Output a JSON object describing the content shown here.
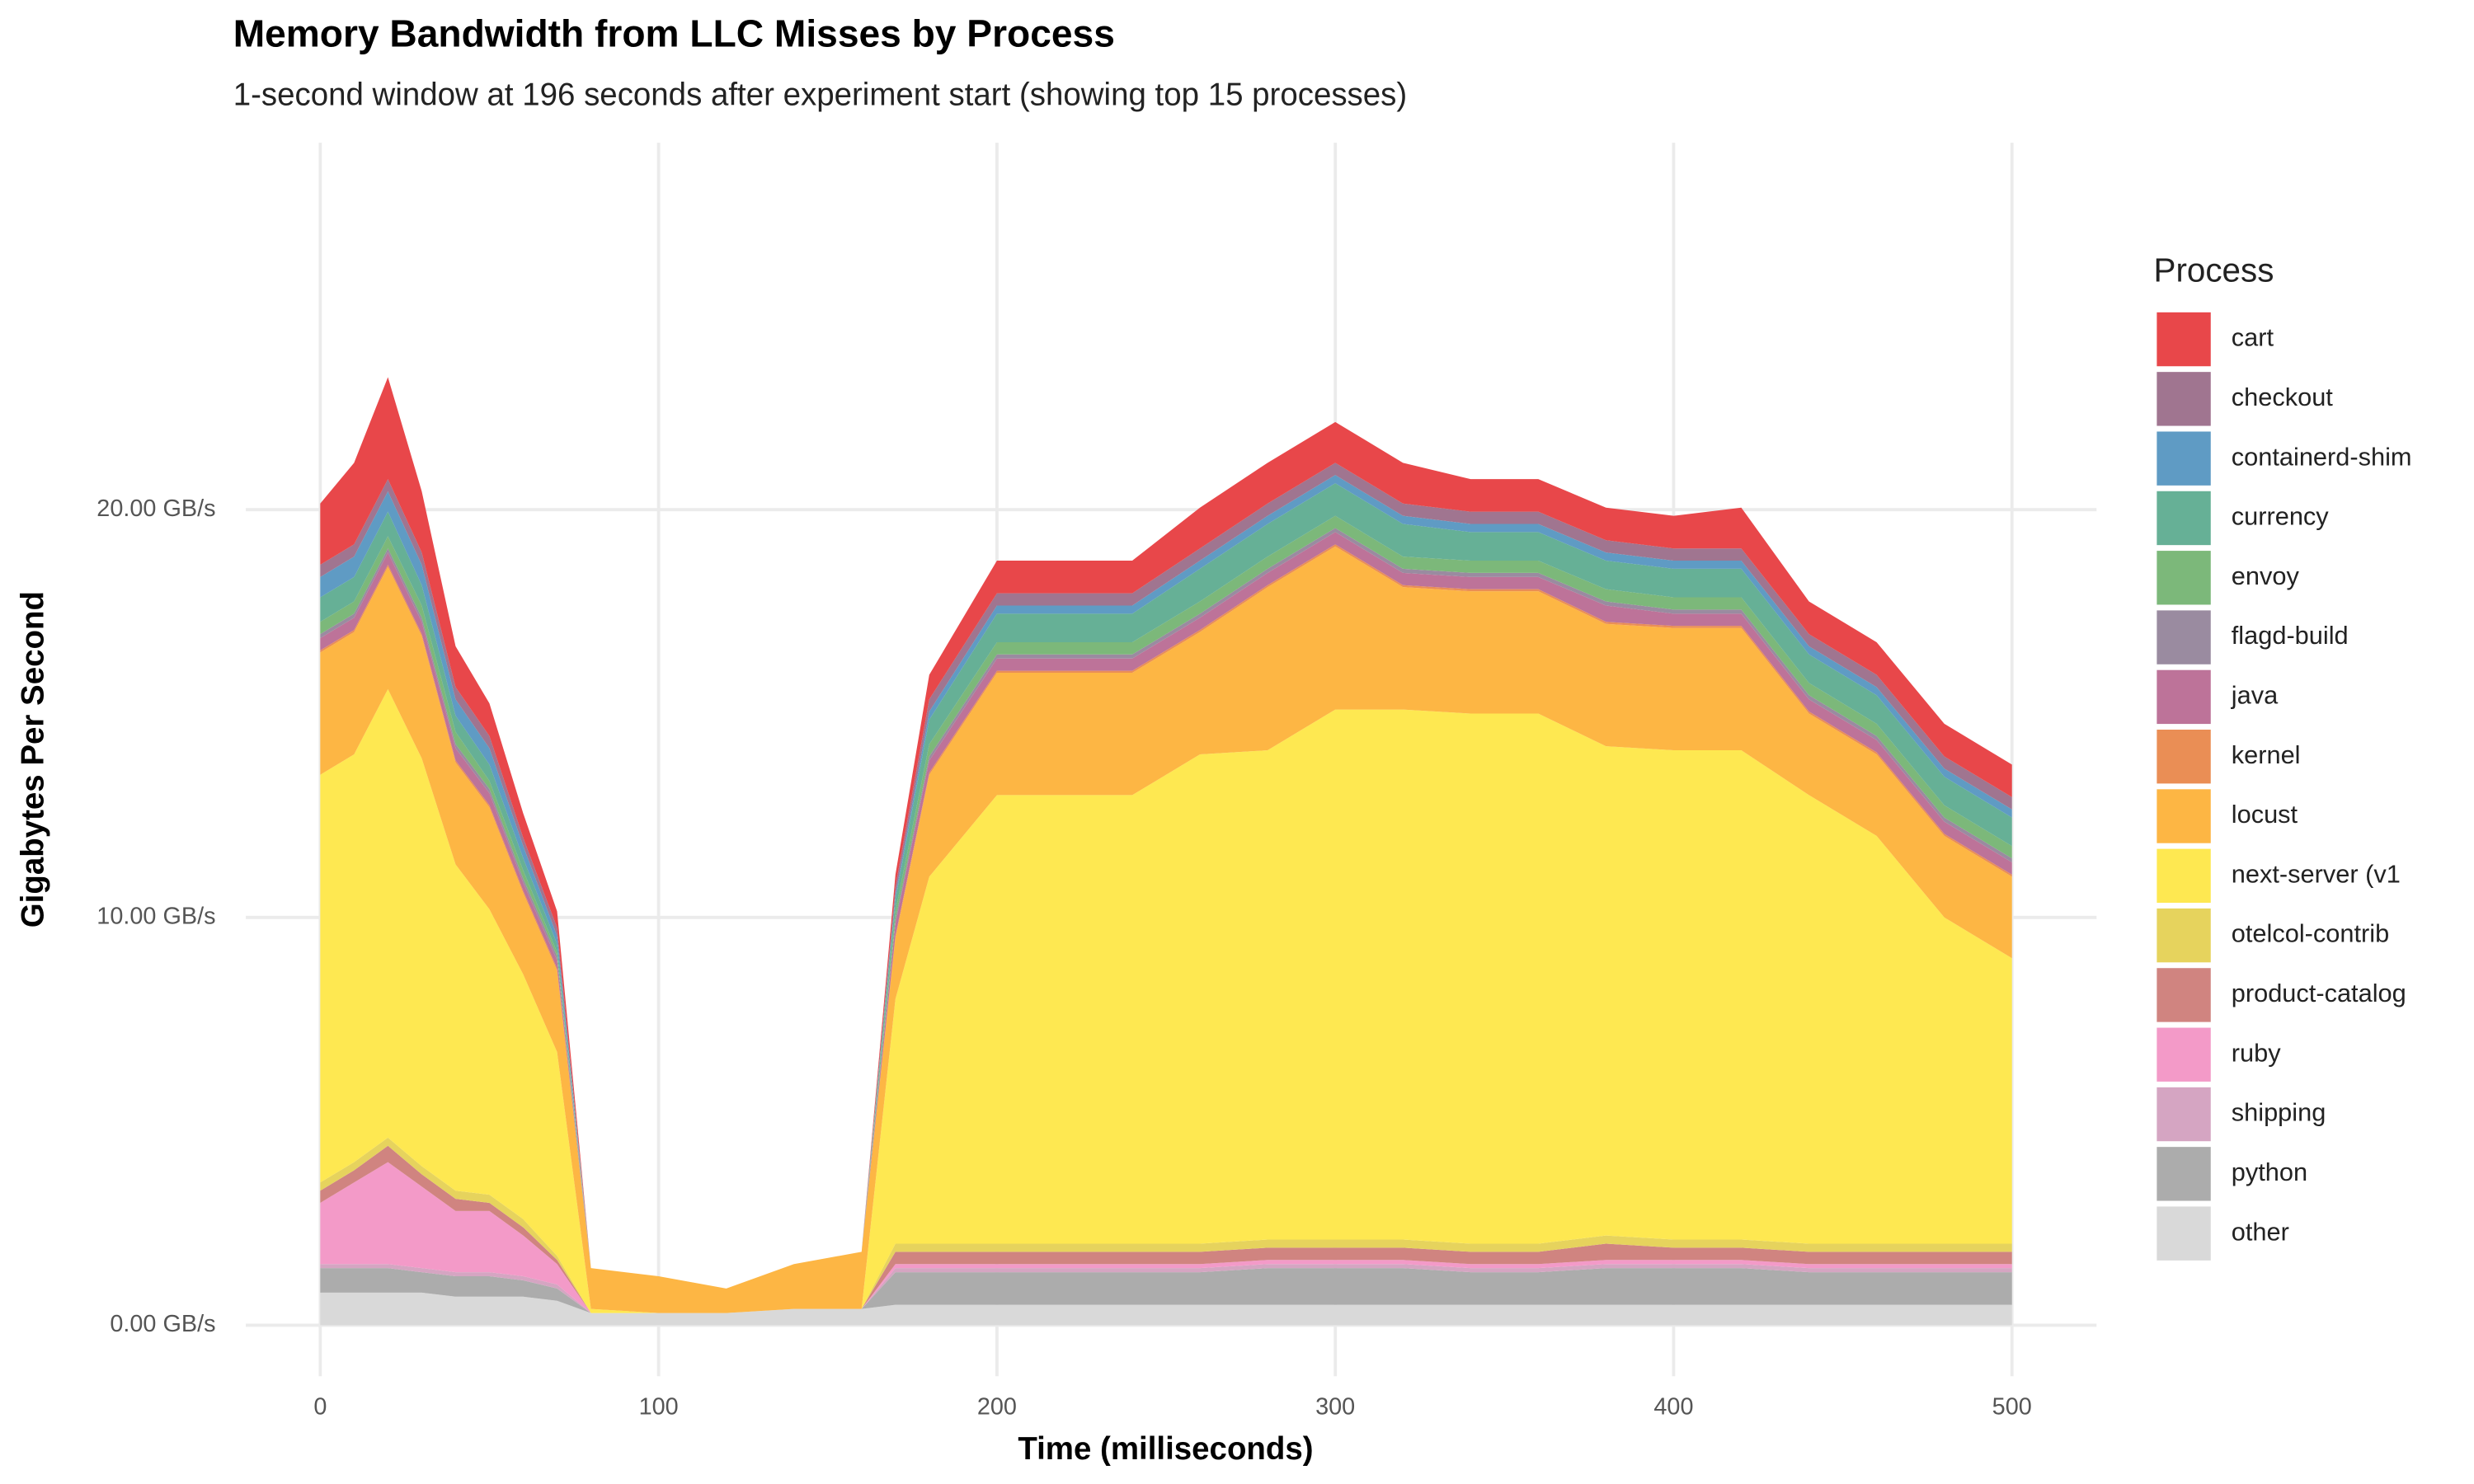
{
  "chart_data": {
    "type": "stacked_area",
    "title": "Memory Bandwidth from LLC Misses by Process",
    "subtitle": "1-second window at 196 seconds after experiment start (showing top 15 processes)",
    "x_label": "Time (milliseconds)",
    "y_label": "Gigabytes Per Second",
    "legend_title": "Process",
    "legend_position": "right",
    "grid": true,
    "x": [
      0,
      10,
      20,
      30,
      40,
      50,
      60,
      70,
      80,
      100,
      120,
      140,
      160,
      170,
      180,
      200,
      220,
      240,
      260,
      280,
      300,
      320,
      340,
      360,
      380,
      400,
      420,
      440,
      460,
      480,
      500
    ],
    "xlim": [
      -22,
      525
    ],
    "xticks": [
      0,
      100,
      200,
      300,
      400,
      500
    ],
    "ylim": [
      -1.25,
      29
    ],
    "yticks": [
      {
        "value": 0,
        "label": "0.00 GB/s"
      },
      {
        "value": 10,
        "label": "10.00 GB/s"
      },
      {
        "value": 20,
        "label": "20.00 GB/s"
      }
    ],
    "series": [
      {
        "name": "cart",
        "color": "#e8474a",
        "values": [
          1.5,
          2,
          2.5,
          1.5,
          1,
          0.8,
          0.6,
          0.4,
          0,
          0,
          0,
          0,
          0,
          0.3,
          0.6,
          0.8,
          0.8,
          0.8,
          1,
          1,
          1,
          1,
          0.8,
          0.8,
          0.8,
          0.8,
          1,
          0.8,
          0.8,
          0.8,
          0.8
        ]
      },
      {
        "name": "checkout",
        "color": "#a07590",
        "values": [
          0.3,
          0.3,
          0.3,
          0.3,
          0.3,
          0.3,
          0.2,
          0.2,
          0,
          0,
          0,
          0,
          0,
          0.2,
          0.3,
          0.3,
          0.3,
          0.3,
          0.3,
          0.3,
          0.3,
          0.3,
          0.3,
          0.3,
          0.3,
          0.3,
          0.3,
          0.3,
          0.3,
          0.3,
          0.3
        ]
      },
      {
        "name": "containerd-shim",
        "color": "#5f9bc4",
        "values": [
          0.5,
          0.5,
          0.5,
          0.5,
          0.4,
          0.4,
          0.3,
          0.2,
          0,
          0,
          0,
          0,
          0,
          0.1,
          0.2,
          0.2,
          0.2,
          0.2,
          0.2,
          0.2,
          0.2,
          0.2,
          0.2,
          0.2,
          0.2,
          0.2,
          0.2,
          0.2,
          0.2,
          0.2,
          0.2
        ]
      },
      {
        "name": "currency",
        "color": "#66b096",
        "values": [
          0.6,
          0.6,
          0.6,
          0.5,
          0.4,
          0.4,
          0.3,
          0.2,
          0,
          0,
          0,
          0,
          0,
          0.3,
          0.6,
          0.7,
          0.7,
          0.7,
          0.8,
          0.8,
          0.8,
          0.8,
          0.7,
          0.7,
          0.7,
          0.7,
          0.7,
          0.7,
          0.7,
          0.7,
          0.7
        ]
      },
      {
        "name": "envoy",
        "color": "#7cb87a",
        "values": [
          0.3,
          0.3,
          0.3,
          0.3,
          0.3,
          0.2,
          0.2,
          0.1,
          0,
          0,
          0,
          0,
          0,
          0.2,
          0.3,
          0.3,
          0.3,
          0.3,
          0.3,
          0.3,
          0.3,
          0.3,
          0.3,
          0.3,
          0.3,
          0.3,
          0.3,
          0.3,
          0.3,
          0.3,
          0.3
        ]
      },
      {
        "name": "flagd-build",
        "color": "#9a8ba0",
        "values": [
          0.1,
          0.1,
          0.1,
          0.1,
          0.1,
          0.1,
          0.1,
          0.1,
          0,
          0,
          0,
          0,
          0,
          0.1,
          0.1,
          0.1,
          0.1,
          0.1,
          0.1,
          0.1,
          0.1,
          0.1,
          0.1,
          0.1,
          0.1,
          0.1,
          0.1,
          0.1,
          0.1,
          0.1,
          0.1
        ]
      },
      {
        "name": "java",
        "color": "#bd7399",
        "values": [
          0.3,
          0.3,
          0.3,
          0.3,
          0.3,
          0.3,
          0.2,
          0.2,
          0,
          0,
          0,
          0,
          0,
          0.3,
          0.3,
          0.3,
          0.3,
          0.3,
          0.3,
          0.3,
          0.3,
          0.3,
          0.3,
          0.3,
          0.4,
          0.3,
          0.3,
          0.3,
          0.3,
          0.3,
          0.3
        ]
      },
      {
        "name": "kernel",
        "color": "#ea8e55",
        "values": [
          0.05,
          0.05,
          0.05,
          0.05,
          0.05,
          0.05,
          0.05,
          0.05,
          0,
          0,
          0,
          0,
          0,
          0.05,
          0.05,
          0.05,
          0.05,
          0.05,
          0.05,
          0.05,
          0.05,
          0.05,
          0.05,
          0.05,
          0.05,
          0.05,
          0.05,
          0.05,
          0.05,
          0.05,
          0.05
        ]
      },
      {
        "name": "locust",
        "color": "#fdb644",
        "values": [
          3,
          3,
          3,
          3,
          2.5,
          2.5,
          2,
          2,
          1,
          0.9,
          0.6,
          1.1,
          1.4,
          1.5,
          2.5,
          3,
          3,
          3,
          3,
          4,
          4,
          3,
          3,
          3,
          3,
          3,
          3,
          2,
          2,
          2,
          2
        ]
      },
      {
        "name": "next-server (v1",
        "color": "#fee851",
        "values": [
          10,
          10,
          11,
          10,
          8,
          7,
          6,
          5,
          0.1,
          0,
          0,
          0,
          0,
          6,
          9,
          11,
          11,
          11,
          12,
          12,
          13,
          13,
          13,
          13,
          12,
          12,
          12,
          11,
          10,
          8,
          7
        ]
      },
      {
        "name": "otelcol-contrib",
        "color": "#e6d35d",
        "values": [
          0.2,
          0.2,
          0.2,
          0.2,
          0.2,
          0.2,
          0.2,
          0.1,
          0,
          0,
          0,
          0,
          0,
          0.2,
          0.2,
          0.2,
          0.2,
          0.2,
          0.2,
          0.2,
          0.2,
          0.2,
          0.2,
          0.2,
          0.2,
          0.2,
          0.2,
          0.2,
          0.2,
          0.2,
          0.2
        ]
      },
      {
        "name": "product-catalog",
        "color": "#d08480",
        "values": [
          0.3,
          0.3,
          0.4,
          0.3,
          0.3,
          0.2,
          0.2,
          0.1,
          0,
          0,
          0,
          0,
          0,
          0.3,
          0.3,
          0.3,
          0.3,
          0.3,
          0.3,
          0.3,
          0.3,
          0.3,
          0.3,
          0.3,
          0.4,
          0.3,
          0.3,
          0.3,
          0.3,
          0.3,
          0.3
        ]
      },
      {
        "name": "ruby",
        "color": "#f39ac8",
        "values": [
          1.5,
          2,
          2.5,
          2,
          1.5,
          1.5,
          1,
          0.5,
          0,
          0,
          0,
          0,
          0,
          0.1,
          0.1,
          0.1,
          0.1,
          0.1,
          0.1,
          0.1,
          0.1,
          0.1,
          0.1,
          0.1,
          0.1,
          0.1,
          0.1,
          0.1,
          0.1,
          0.1,
          0.1
        ]
      },
      {
        "name": "shipping",
        "color": "#d5a5c2",
        "values": [
          0.1,
          0.1,
          0.1,
          0.1,
          0.1,
          0.1,
          0.1,
          0.1,
          0,
          0,
          0,
          0,
          0,
          0.1,
          0.1,
          0.1,
          0.1,
          0.1,
          0.1,
          0.1,
          0.1,
          0.1,
          0.1,
          0.1,
          0.1,
          0.1,
          0.1,
          0.1,
          0.1,
          0.1,
          0.1
        ]
      },
      {
        "name": "python",
        "color": "#acacac",
        "values": [
          0.6,
          0.6,
          0.6,
          0.5,
          0.5,
          0.5,
          0.4,
          0.3,
          0,
          0,
          0,
          0,
          0,
          0.8,
          0.8,
          0.8,
          0.8,
          0.8,
          0.8,
          0.9,
          0.9,
          0.9,
          0.8,
          0.8,
          0.9,
          0.9,
          0.9,
          0.8,
          0.8,
          0.8,
          0.8
        ]
      },
      {
        "name": "other",
        "color": "#d9d9d9",
        "values": [
          0.8,
          0.8,
          0.8,
          0.8,
          0.7,
          0.7,
          0.7,
          0.6,
          0.3,
          0.3,
          0.3,
          0.4,
          0.4,
          0.5,
          0.5,
          0.5,
          0.5,
          0.5,
          0.5,
          0.5,
          0.5,
          0.5,
          0.5,
          0.5,
          0.5,
          0.5,
          0.5,
          0.5,
          0.5,
          0.5,
          0.5
        ]
      }
    ]
  }
}
